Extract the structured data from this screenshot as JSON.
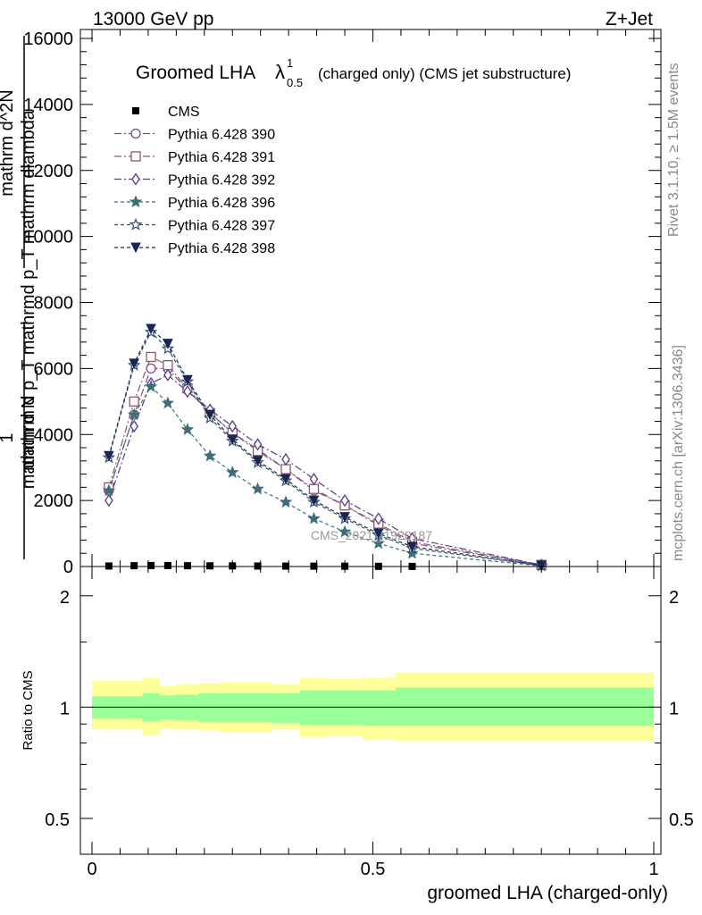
{
  "header": {
    "left": "13000 GeV pp",
    "right": "Z+Jet"
  },
  "side": {
    "rivet": "Rivet 3.1.10, ≥ 1.5M events",
    "mcplots": "mcplots.cern.ch [arXiv:1306.3436]"
  },
  "chart_data": [
    {
      "type": "line",
      "title_main": "Groomed LHA",
      "title_symbol": "λ",
      "title_sup": "1",
      "title_sub": "0.5",
      "title_tail": "(charged only) (CMS jet substructure)",
      "watermark": "CMS_2021_I1920187",
      "ylabel_lines": [
        "1",
        "mathrm d N",
        "mathrm d p_T mathrmd p_T mathrm dlambda",
        "mathrm d^2N"
      ],
      "xlim": [
        0,
        1
      ],
      "ylim": [
        0,
        16000
      ],
      "yticks": [
        0,
        2000,
        4000,
        6000,
        8000,
        10000,
        12000,
        14000,
        16000
      ],
      "ytick_labels": [
        "0",
        "2000",
        "4000",
        "6000",
        "8000",
        "10000",
        "12000",
        "14000",
        "16000"
      ],
      "x": [
        0.03,
        0.075,
        0.105,
        0.135,
        0.17,
        0.21,
        0.25,
        0.295,
        0.345,
        0.395,
        0.45,
        0.51,
        0.57,
        0.8
      ],
      "series": [
        {
          "name": "CMS",
          "color": "#000000",
          "marker": "square",
          "dash": "none",
          "values": [
            15,
            25,
            30,
            30,
            25,
            20,
            18,
            15,
            12,
            10,
            8,
            5,
            3,
            1
          ]
        },
        {
          "name": "Pythia 6.428 390",
          "color": "#7a4b86",
          "marker": "circle",
          "dash": "8,3,2,3",
          "values": [
            2300,
            4600,
            6000,
            6000,
            5350,
            4650,
            4050,
            3550,
            2950,
            2300,
            1850,
            1250,
            700,
            40
          ]
        },
        {
          "name": "Pythia 6.428 391",
          "color": "#8a5a6a",
          "marker": "square-open",
          "dash": "8,3,2,3",
          "values": [
            2400,
            5000,
            6350,
            6100,
            5400,
            4650,
            4050,
            3500,
            2950,
            2350,
            1850,
            1300,
            750,
            50
          ]
        },
        {
          "name": "Pythia 6.428 392",
          "color": "#5a3a8a",
          "marker": "diamond",
          "dash": "8,3,2,3",
          "values": [
            2000,
            4250,
            5550,
            5800,
            5300,
            4750,
            4250,
            3700,
            3250,
            2650,
            2000,
            1450,
            850,
            50
          ]
        },
        {
          "name": "Pythia 6.428 396",
          "color": "#3f6d78",
          "marker": "star",
          "dash": "4,3",
          "values": [
            2300,
            4600,
            5450,
            4950,
            4150,
            3350,
            2850,
            2350,
            1950,
            1450,
            1050,
            700,
            400,
            20
          ]
        },
        {
          "name": "Pythia 6.428 397",
          "color": "#2f5070",
          "marker": "star-open",
          "dash": "4,3",
          "values": [
            3300,
            6100,
            7100,
            6600,
            5600,
            4500,
            3800,
            3150,
            2600,
            1950,
            1450,
            950,
            550,
            30
          ]
        },
        {
          "name": "Pythia 6.428 398",
          "color": "#1a2550",
          "marker": "tri-down",
          "dash": "4,3",
          "values": [
            3350,
            6150,
            7200,
            6750,
            5650,
            4600,
            3850,
            3200,
            2650,
            2000,
            1500,
            1000,
            600,
            30
          ]
        }
      ]
    },
    {
      "type": "area",
      "ylabel": "Ratio to CMS",
      "xlabel": "groomed LHA (charged-only)",
      "xlim": [
        0,
        1
      ],
      "ylim": [
        0.4,
        2.4
      ],
      "log_y": true,
      "xticks": [
        0,
        0.5,
        1
      ],
      "xtick_labels": [
        "0",
        "0.5",
        "1"
      ],
      "yticks": [
        0.5,
        1,
        2
      ],
      "ytick_labels": [
        "0.5",
        "1",
        "2"
      ],
      "bin_edges": [
        0,
        0.06,
        0.09,
        0.12,
        0.15,
        0.19,
        0.23,
        0.27,
        0.32,
        0.37,
        0.42,
        0.48,
        0.54,
        1.0
      ],
      "band_inner": [
        [
          0.93,
          1.07
        ],
        [
          0.93,
          1.07
        ],
        [
          0.915,
          1.09
        ],
        [
          0.925,
          1.075
        ],
        [
          0.92,
          1.08
        ],
        [
          0.91,
          1.09
        ],
        [
          0.91,
          1.09
        ],
        [
          0.91,
          1.09
        ],
        [
          0.905,
          1.09
        ],
        [
          0.895,
          1.11
        ],
        [
          0.895,
          1.11
        ],
        [
          0.89,
          1.11
        ],
        [
          0.89,
          1.13
        ],
        [
          0.89,
          1.16
        ]
      ],
      "band_outer": [
        [
          0.87,
          1.18
        ],
        [
          0.87,
          1.18
        ],
        [
          0.84,
          1.2
        ],
        [
          0.875,
          1.14
        ],
        [
          0.87,
          1.15
        ],
        [
          0.865,
          1.16
        ],
        [
          0.855,
          1.17
        ],
        [
          0.855,
          1.17
        ],
        [
          0.87,
          1.15
        ],
        [
          0.83,
          1.2
        ],
        [
          0.835,
          1.19
        ],
        [
          0.815,
          1.2
        ],
        [
          0.81,
          1.24
        ],
        [
          0.81,
          1.25
        ]
      ],
      "band_colors": {
        "inner": "#99ff99",
        "outer": "#ffff99"
      }
    }
  ]
}
